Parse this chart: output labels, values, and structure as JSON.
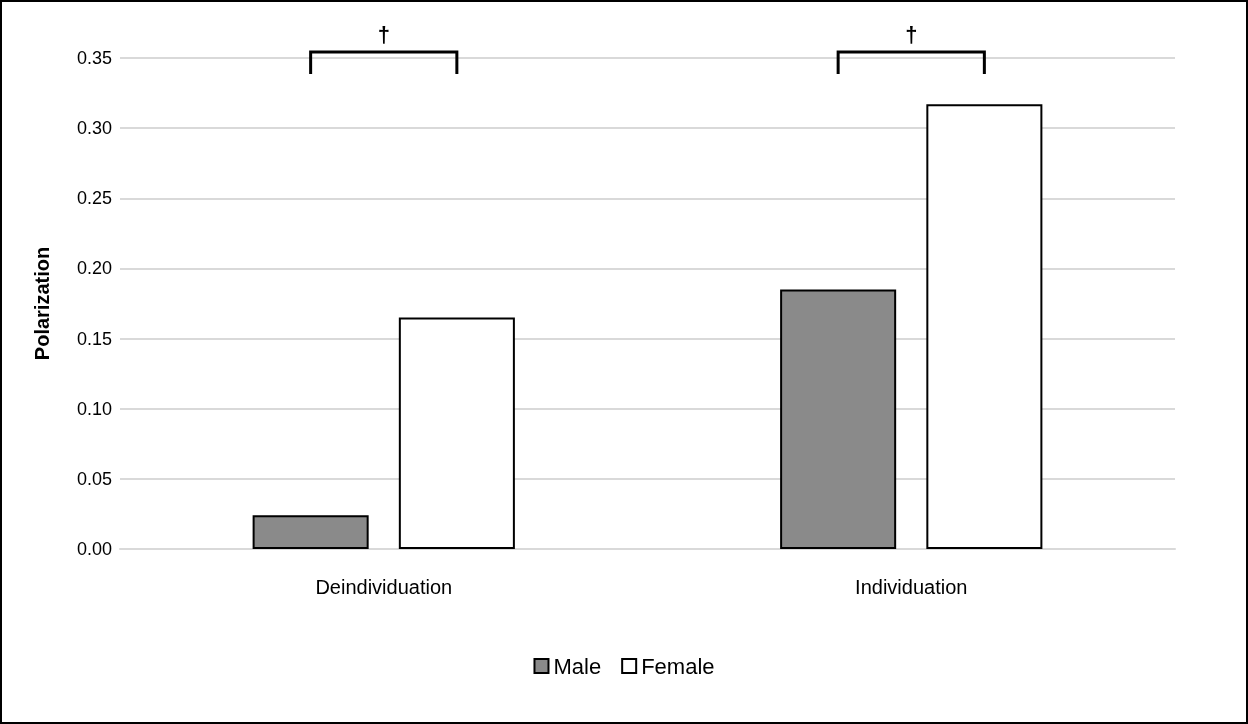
{
  "chart_data": {
    "type": "bar",
    "ylabel": "Polarization",
    "categories": [
      "Deindividuation",
      "Individuation"
    ],
    "series": [
      {
        "name": "Male",
        "color": "#8a8a8a",
        "values": [
          0.024,
          0.185
        ]
      },
      {
        "name": "Female",
        "color": "#ffffff",
        "values": [
          0.165,
          0.317
        ]
      }
    ],
    "ylim": [
      0,
      0.35
    ],
    "yticks": [
      {
        "value": 0,
        "label": "0.00"
      },
      {
        "value": 0.05,
        "label": "0.05"
      },
      {
        "value": 0.1,
        "label": "0.10"
      },
      {
        "value": 0.15,
        "label": "0.15"
      },
      {
        "value": 0.2,
        "label": "0.20"
      },
      {
        "value": 0.25,
        "label": "0.25"
      },
      {
        "value": 0.3,
        "label": "0.30"
      },
      {
        "value": 0.35,
        "label": "0.35"
      }
    ],
    "grid": "y",
    "legend": "bottom",
    "annotations": [
      "†",
      "†"
    ]
  }
}
